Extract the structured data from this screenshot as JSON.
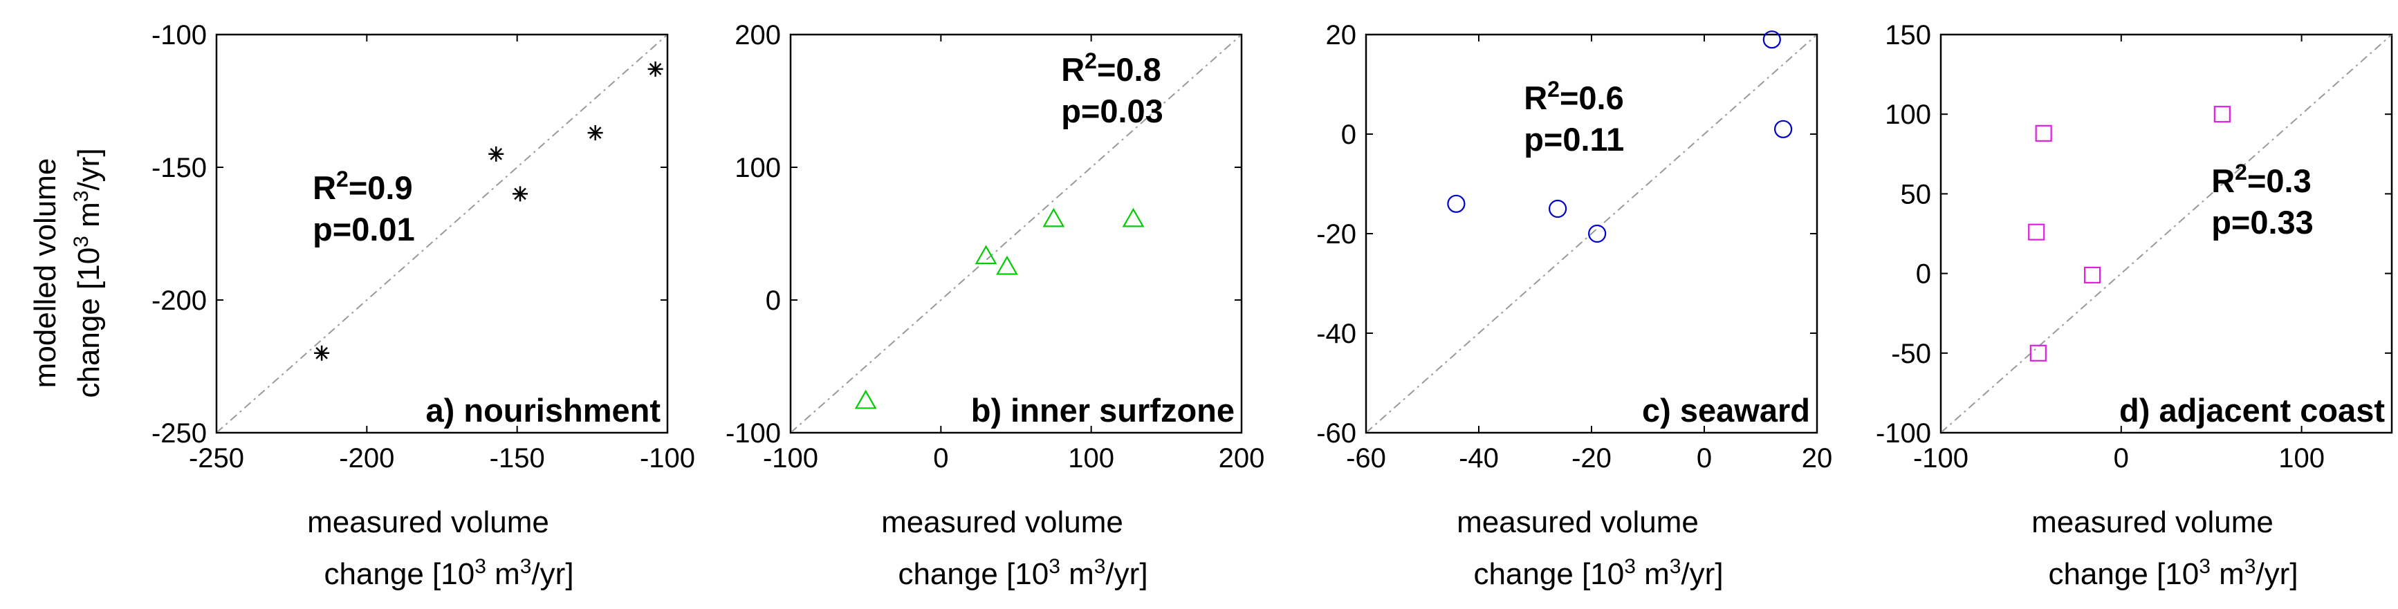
{
  "figure": {
    "ylabel_line1": "modelled volume",
    "ylabel_line2_pre": "change [10",
    "ylabel_line2_mid": " m",
    "ylabel_line2_post": "/yr]",
    "unit_sup": "3"
  },
  "chart_data": [
    {
      "type": "scatter",
      "title": "a) nourishment",
      "xlim": [
        -250,
        -100
      ],
      "ylim": [
        -250,
        -100
      ],
      "xticks": [
        -250,
        -200,
        -150,
        -100
      ],
      "yticks": [
        -250,
        -200,
        -150,
        -100
      ],
      "xlabel_line1": "measured volume",
      "xlabel_line2_pre": "change [10",
      "xlabel_line2_mid": " m",
      "xlabel_line2_post": "/yr]",
      "marker": "asterisk",
      "color": "#000000",
      "points": [
        [
          -215,
          -220
        ],
        [
          -157,
          -145
        ],
        [
          -149,
          -160
        ],
        [
          -124,
          -137
        ],
        [
          -104,
          -113
        ]
      ],
      "stat_r2": "=0.9",
      "stat_r2_base": "R",
      "stat_r2_sup": "2",
      "stat_p": "p=0.01",
      "stat_anchor": [
        -218,
        -162
      ]
    },
    {
      "type": "scatter",
      "title": "b) inner surfzone",
      "xlim": [
        -100,
        200
      ],
      "ylim": [
        -100,
        200
      ],
      "xticks": [
        -100,
        0,
        100,
        200
      ],
      "yticks": [
        -100,
        0,
        100,
        200
      ],
      "xlabel_line1": "measured volume",
      "xlabel_line2_pre": "change [10",
      "xlabel_line2_mid": " m",
      "xlabel_line2_post": "/yr]",
      "marker": "triangle",
      "color": "#00cc00",
      "points": [
        [
          -50,
          -76
        ],
        [
          30,
          33
        ],
        [
          44,
          25
        ],
        [
          75,
          61
        ],
        [
          128,
          61
        ]
      ],
      "stat_r2": "=0.8",
      "stat_r2_base": "R",
      "stat_r2_sup": "2",
      "stat_p": "p=0.03",
      "stat_anchor": [
        80,
        165
      ]
    },
    {
      "type": "scatter",
      "title": "c) seaward",
      "xlim": [
        -60,
        20
      ],
      "ylim": [
        -60,
        20
      ],
      "xticks": [
        -60,
        -40,
        -20,
        0,
        20
      ],
      "yticks": [
        -60,
        -40,
        -20,
        0,
        20
      ],
      "xlabel_line1": "measured volume",
      "xlabel_line2_pre": "change [10",
      "xlabel_line2_mid": " m",
      "xlabel_line2_post": "/yr]",
      "marker": "circle",
      "color": "#0000cc",
      "points": [
        [
          -44,
          -14
        ],
        [
          -26,
          -15
        ],
        [
          -19,
          -20
        ],
        [
          12,
          19
        ],
        [
          14,
          1
        ]
      ],
      "stat_r2": "=0.6",
      "stat_r2_base": "R",
      "stat_r2_sup": "2",
      "stat_p": "p=0.11",
      "stat_anchor": [
        -32,
        5
      ]
    },
    {
      "type": "scatter",
      "title": "d) adjacent coast",
      "xlim": [
        -100,
        150
      ],
      "ylim": [
        -100,
        150
      ],
      "xticks": [
        -100,
        0,
        100
      ],
      "yticks": [
        -100,
        -50,
        0,
        50,
        100,
        150
      ],
      "xlabel_line1": "measured volume",
      "xlabel_line2_pre": "change [10",
      "xlabel_line2_mid": " m",
      "xlabel_line2_post": "/yr]",
      "marker": "square",
      "color": "#e020e0",
      "points": [
        [
          -46,
          -50
        ],
        [
          -47,
          26
        ],
        [
          -43,
          88
        ],
        [
          -16,
          -1
        ],
        [
          56,
          100
        ]
      ],
      "stat_r2": "=0.3",
      "stat_r2_base": "R",
      "stat_r2_sup": "2",
      "stat_p": "p=0.33",
      "stat_anchor": [
        50,
        51
      ]
    }
  ]
}
